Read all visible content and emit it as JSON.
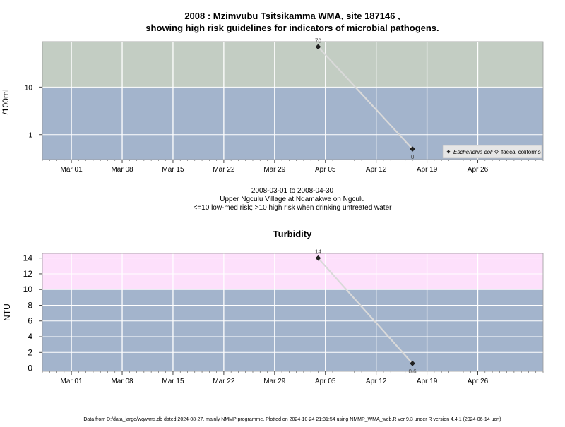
{
  "title_line1": "2008 : Mzimvubu Tsitsikamma WMA, site 187146 ,",
  "title_line2": "showing high risk guidelines for indicators of microbial pathogens.",
  "caption_lines": [
    "2008-03-01 to 2008-04-30",
    "Upper Ngculu Village at Nqamakwe on Ngculu",
    "<=10 low-med risk; >10 high risk when drinking untreated water"
  ],
  "footer": "Data from D:/data_large/wq/wms.db dated 2024-08-27, mainly NMMP programme. Plotted on 2024-10-24 21:31:54 using NMMP_WMA_web.R ver 9.3 under R version 4.4.1 (2024-06-14 ucrt)",
  "colors": {
    "low_band": "#a3b4cc",
    "micro_high_band": "#c3cdc3",
    "turb_high_band": "#fde0fb",
    "grid": "#ffffff",
    "series_line": "#d9d9d9",
    "marker": "#222222"
  },
  "chart_data": [
    {
      "type": "line",
      "title": "",
      "xlabel": "",
      "ylabel": "/100mL",
      "y_scale": "log",
      "ylim": [
        0.3,
        90
      ],
      "xlim": [
        "2008-02-26",
        "2008-05-05"
      ],
      "x_ticks": [
        "2008-03-01",
        "2008-03-08",
        "2008-03-15",
        "2008-03-22",
        "2008-03-29",
        "2008-04-05",
        "2008-04-12",
        "2008-04-19",
        "2008-04-26"
      ],
      "x_tick_labels": [
        "Mar 01",
        "Mar 08",
        "Mar 15",
        "Mar 22",
        "Mar 29",
        "Apr 05",
        "Apr 12",
        "Apr 19",
        "Apr 26"
      ],
      "y_ticks": [
        1,
        10
      ],
      "y_tick_labels": [
        "1",
        "10"
      ],
      "threshold": 10,
      "grid": true,
      "legend_position": "bottom-right",
      "series": [
        {
          "name": "Escherichia coli",
          "marker": "filled-diamond",
          "x": [
            "2008-04-04",
            "2008-04-17"
          ],
          "values": [
            70,
            0.5
          ],
          "data_labels": [
            "70",
            "0"
          ]
        }
      ],
      "legend": [
        {
          "label": "Escherichia coli",
          "marker": "filled-diamond"
        },
        {
          "label": "faecal coliforms",
          "marker": "open-diamond"
        }
      ]
    },
    {
      "type": "line",
      "title": "Turbidity",
      "xlabel": "",
      "ylabel": "NTU",
      "y_scale": "linear",
      "ylim": [
        -0.4,
        14.6
      ],
      "xlim": [
        "2008-02-26",
        "2008-05-05"
      ],
      "x_ticks": [
        "2008-03-01",
        "2008-03-08",
        "2008-03-15",
        "2008-03-22",
        "2008-03-29",
        "2008-04-05",
        "2008-04-12",
        "2008-04-19",
        "2008-04-26"
      ],
      "x_tick_labels": [
        "Mar 01",
        "Mar 08",
        "Mar 15",
        "Mar 22",
        "Mar 29",
        "Apr 05",
        "Apr 12",
        "Apr 19",
        "Apr 26"
      ],
      "y_ticks": [
        0,
        2,
        4,
        6,
        8,
        10,
        12,
        14
      ],
      "y_tick_labels": [
        "0",
        "2",
        "4",
        "6",
        "8",
        "10",
        "12",
        "14"
      ],
      "threshold": 10,
      "grid": true,
      "series": [
        {
          "name": "",
          "marker": "filled-diamond",
          "x": [
            "2008-04-04",
            "2008-04-17"
          ],
          "values": [
            14,
            0.6
          ],
          "data_labels": [
            "14",
            "0.6"
          ]
        }
      ]
    }
  ]
}
